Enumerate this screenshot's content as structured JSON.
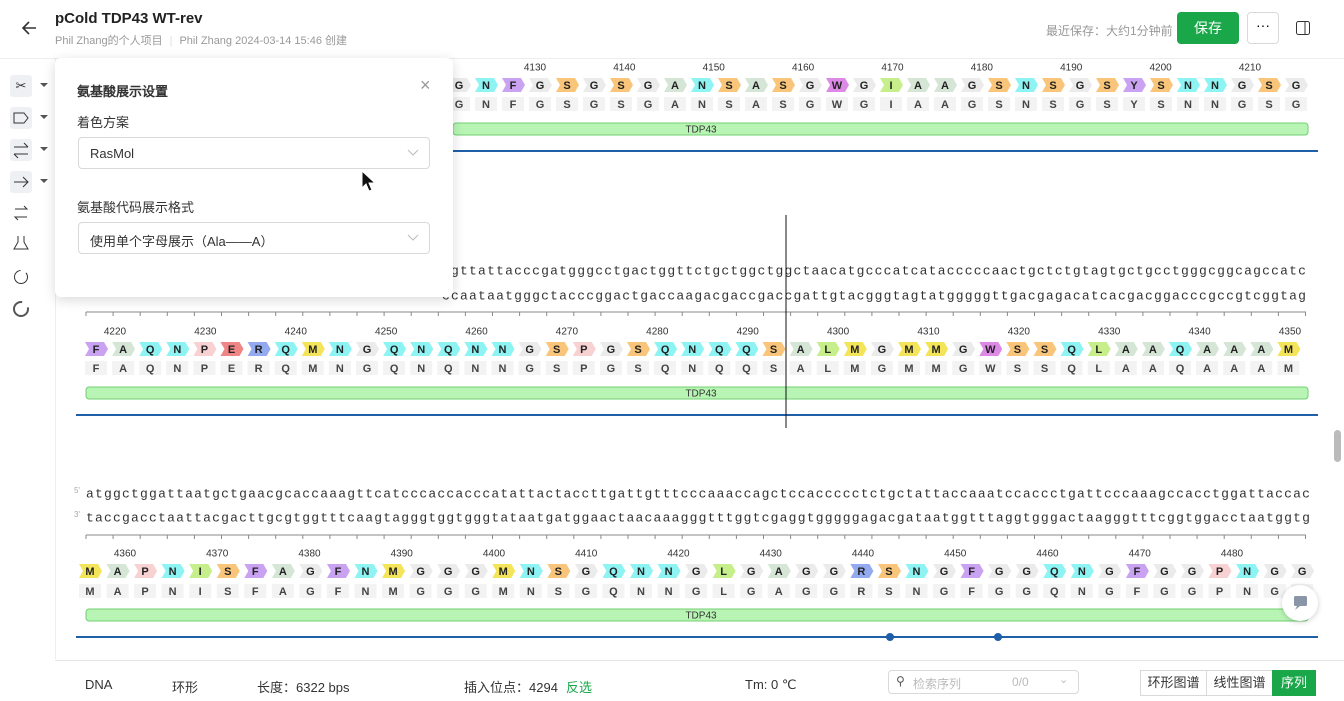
{
  "header": {
    "title": "pCold TDP43 WT-rev",
    "owner": "Phil Zhang的个人项目",
    "meta": "Phil Zhang 2024-03-14 15:46 创建",
    "last_saved": "最近保存：大约1分钟前",
    "save": "保存"
  },
  "popup": {
    "title": "氨基酸展示设置",
    "scheme_label": "着色方案",
    "scheme_value": "RasMol",
    "format_label": "氨基酸代码展示格式",
    "format_value": "使用单个字母展示（Ala——A）"
  },
  "strand_labels": [
    "5'",
    "3'"
  ],
  "aa_colors": {
    "G": "#ebebeb",
    "A": "#d6e6d6",
    "N": "#8ef3f3",
    "F": "#c9a2f2",
    "S": "#f9c57a",
    "W": "#dc8ae6",
    "I": "#c6ef8c",
    "Y": "#c9a2f2",
    "Q": "#8ef3f3",
    "P": "#f8d2d2",
    "E": "#ef8585",
    "R": "#93aaf0",
    "M": "#f3e45a",
    "L": "#c6ef8c"
  },
  "rows": [
    {
      "positions": [
        4130,
        4140,
        4150,
        4160,
        4170,
        4180,
        4190,
        4200,
        4210
      ],
      "aa": [
        "G",
        "N",
        "F",
        "G",
        "S",
        "G",
        "S",
        "G",
        "A",
        "N",
        "S",
        "A",
        "S",
        "G",
        "W",
        "G",
        "I",
        "A",
        "A",
        "G",
        "S",
        "N",
        "S",
        "G",
        "S",
        "Y",
        "S",
        "N",
        "N",
        "G",
        "S",
        "G"
      ],
      "feature": "TDP43"
    },
    {
      "top": "ggttattacccgatgggcctgactggttctgctggctggctaacatgcccatcatacccccaactgctctgtagtgctgcctgggcggcagccatc",
      "bottom": "ccaataatgggctacccggactgaccaagacgaccgaccgattgtacgggtagtatgggggttgacgagacatcacgacggacccgccgtcggtag",
      "positions": [
        4220,
        4230,
        4240,
        4250,
        4260,
        4270,
        4280,
        4290,
        4300,
        4310,
        4320,
        4330,
        4340,
        4350
      ],
      "aa": [
        "F",
        "A",
        "Q",
        "N",
        "P",
        "E",
        "R",
        "Q",
        "M",
        "N",
        "G",
        "Q",
        "N",
        "Q",
        "N",
        "N",
        "G",
        "S",
        "P",
        "G",
        "S",
        "Q",
        "N",
        "Q",
        "Q",
        "S",
        "A",
        "L",
        "M",
        "G",
        "M",
        "M",
        "G",
        "W",
        "S",
        "S",
        "Q",
        "L",
        "A",
        "A",
        "Q",
        "A",
        "A",
        "A",
        "M"
      ],
      "feature": "TDP43"
    },
    {
      "top": "atggctggattaatgctgaacgcaccaaagttcatcccaccacccatattactaccttgattgtttcccaaaccagctccaccccctctgctattaccaaatccaccctgattcccaaagccacctggattaccac",
      "bottom": "taccgacctaattacgacttgcgtggtttcaagtagggtggtgggtataatgatggaactaacaaagggtttggtcgaggtgggggagacgataatggtttaggtgggactaagggtttcggtggacctaatggtg",
      "positions": [
        4360,
        4370,
        4380,
        4390,
        4400,
        4410,
        4420,
        4430,
        4440,
        4450,
        4460,
        4470,
        4480
      ],
      "aa": [
        "M",
        "A",
        "P",
        "N",
        "I",
        "S",
        "F",
        "A",
        "G",
        "F",
        "N",
        "M",
        "G",
        "G",
        "G",
        "M",
        "N",
        "S",
        "G",
        "Q",
        "N",
        "N",
        "G",
        "L",
        "G",
        "A",
        "G",
        "G",
        "R",
        "S",
        "N",
        "G",
        "F",
        "G",
        "G",
        "Q",
        "N",
        "G",
        "F",
        "G",
        "G",
        "P",
        "N",
        "G",
        "G"
      ],
      "feature": "TDP43"
    }
  ],
  "footer": {
    "mol": "DNA",
    "topology": "环形",
    "length": "长度：6322 bps",
    "insert_label": "插入位点：",
    "insert_pos": 4294,
    "invert": "反选",
    "tm": "Tm: 0 ℃",
    "search_placeholder": "检索序列",
    "search_count": "0/0",
    "tabs": [
      "环形图谱",
      "线性图谱",
      "序列"
    ]
  }
}
